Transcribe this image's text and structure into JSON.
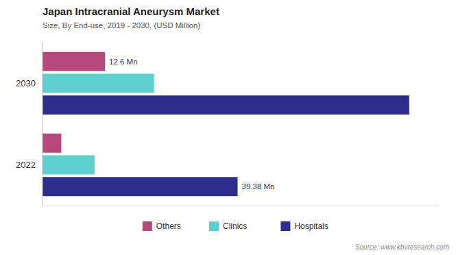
{
  "chart_data": {
    "type": "bar",
    "orientation": "horizontal",
    "title": "Japan Intracranial Aneurysm Market",
    "subtitle": "Size, By End-use, 2019 - 2030, (USD Million)",
    "source": "Source: www.kbvresearch.com",
    "categories": [
      "2030",
      "2022"
    ],
    "series": [
      {
        "name": "Others",
        "color": "#b5477a",
        "values": [
          12.6,
          3.8
        ],
        "value_labels": [
          "12.6 Mn",
          null
        ]
      },
      {
        "name": "Clinics",
        "color": "#5ecece",
        "values": [
          22.5,
          10.5
        ]
      },
      {
        "name": "Hospitals",
        "color": "#2d2e8c",
        "values": [
          74.0,
          39.38
        ],
        "value_labels": [
          null,
          "39.38 Mn"
        ]
      }
    ],
    "xlim": [
      0,
      80
    ],
    "tick_labels": "y",
    "grid": false,
    "legend": "bottom"
  }
}
